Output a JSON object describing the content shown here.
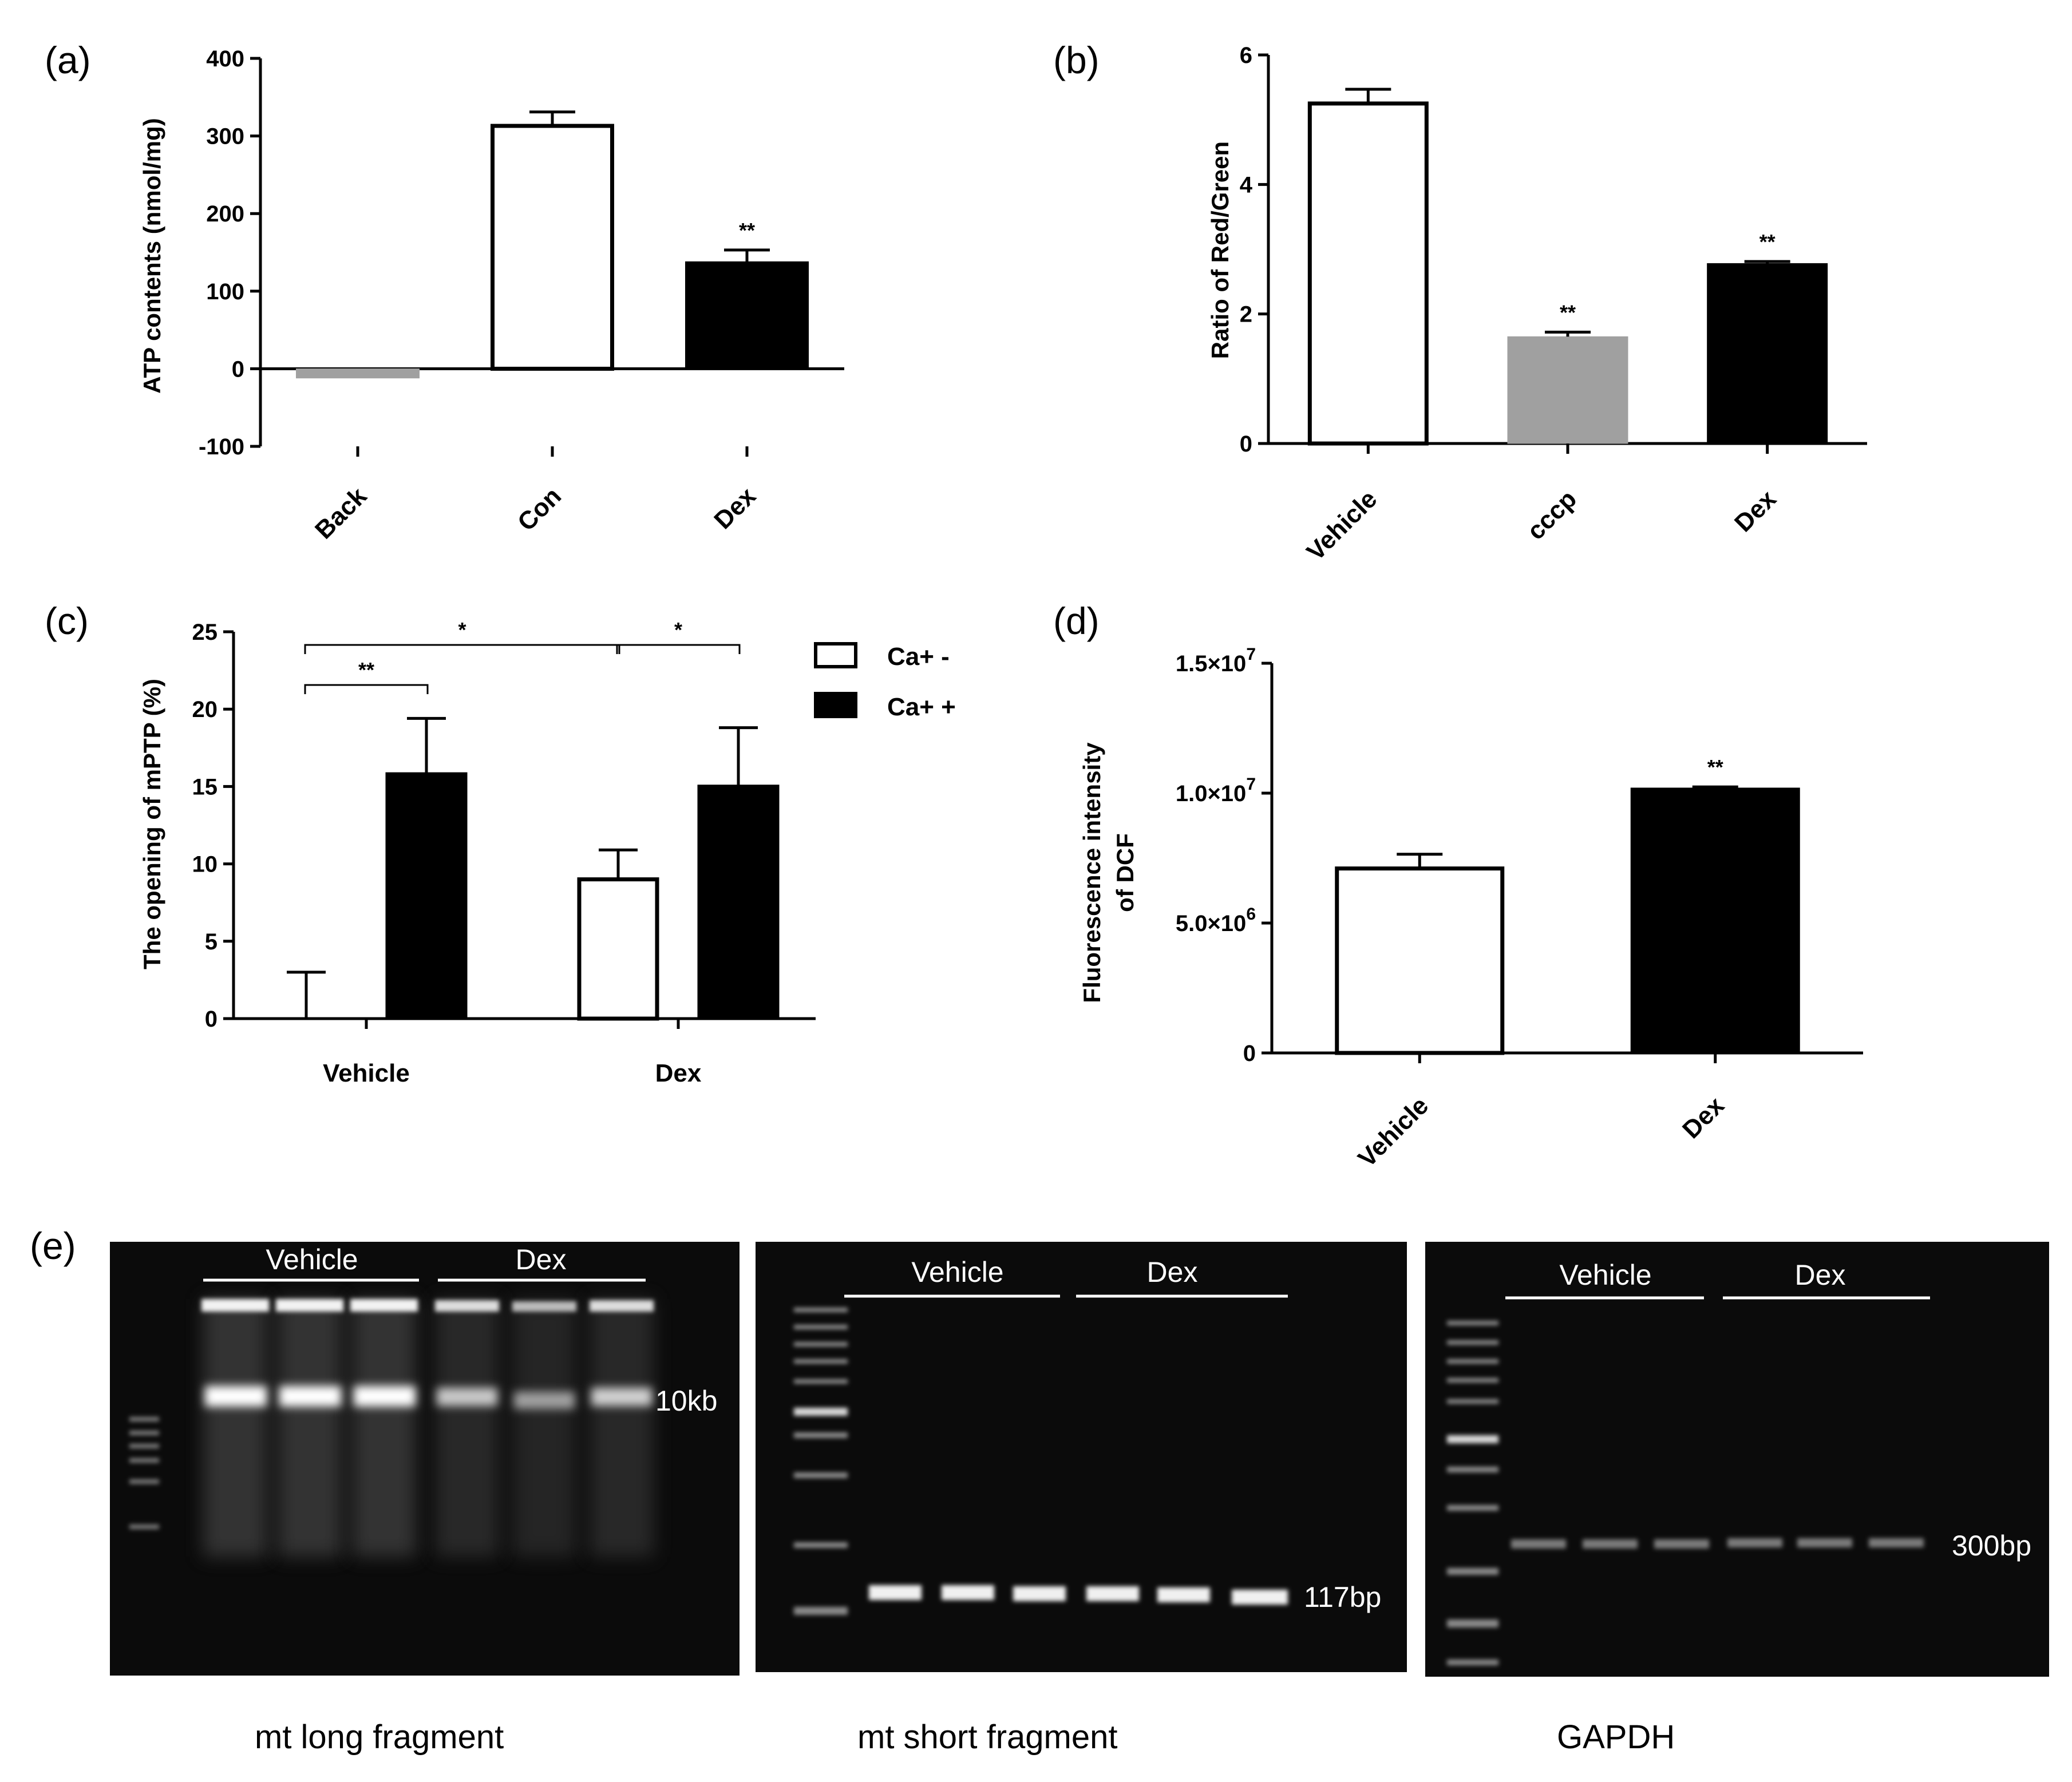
{
  "chart_data": [
    {
      "id": "a",
      "panel_label": "(a)",
      "type": "bar",
      "ylabel": "ATP contents (nmol/mg)",
      "ylim": [
        -100,
        400
      ],
      "yticks": [
        "-100",
        "0",
        "100",
        "200",
        "300",
        "400"
      ],
      "categories": [
        "Back",
        "Con",
        "Dex"
      ],
      "values": [
        -12,
        313,
        138
      ],
      "errors": [
        0,
        18,
        15
      ],
      "significance": [
        "",
        "",
        "**"
      ],
      "colors": [
        "#a0a0a0",
        "#ffffff",
        "#000000"
      ]
    },
    {
      "id": "b",
      "panel_label": "(b)",
      "type": "bar",
      "ylabel": "Ratio of Red/Green",
      "ylim": [
        0,
        6
      ],
      "yticks": [
        "0",
        "2",
        "4",
        "6"
      ],
      "categories": [
        "Vehicle",
        "cccp",
        "Dex"
      ],
      "values": [
        5.25,
        1.65,
        2.78
      ],
      "errors": [
        0.22,
        0.07,
        0.03
      ],
      "significance": [
        "",
        "**",
        "**"
      ],
      "colors": [
        "#ffffff",
        "#a0a0a0",
        "#000000"
      ]
    },
    {
      "id": "c",
      "panel_label": "(c)",
      "type": "bar",
      "ylabel": "The opening of mPTP (%)",
      "ylim": [
        0,
        25
      ],
      "yticks": [
        "0",
        "5",
        "10",
        "15",
        "20",
        "25"
      ],
      "categories": [
        "Vehicle",
        "Dex"
      ],
      "series": [
        {
          "name": "Ca+ -",
          "values": [
            0,
            9.0
          ],
          "errors": [
            3.0,
            1.9
          ],
          "color": "#ffffff"
        },
        {
          "name": "Ca+ +",
          "values": [
            15.9,
            15.1
          ],
          "errors": [
            3.5,
            3.7
          ],
          "color": "#000000"
        }
      ],
      "brackets": [
        {
          "label": "**",
          "from": "Vehicle / Ca+ -",
          "to": "Vehicle / Ca+ +"
        },
        {
          "label": "*",
          "from": "Vehicle / Ca+ -",
          "to": "Dex / Ca+ -"
        },
        {
          "label": "*",
          "from": "Dex / Ca+ -",
          "to": "Dex / Ca+ +"
        }
      ],
      "legend_position": "top-right"
    },
    {
      "id": "d",
      "panel_label": "(d)",
      "type": "bar",
      "ylabel_line1": "Fluorescence intensity",
      "ylabel_line2": "of DCF",
      "ylim": [
        0,
        15000000
      ],
      "ytick_values": [
        0,
        5000000,
        10000000,
        15000000
      ],
      "yticks": [
        {
          "mant": "0",
          "exp": ""
        },
        {
          "mant": "5.0×10",
          "exp": "6"
        },
        {
          "mant": "1.0×10",
          "exp": "7"
        },
        {
          "mant": "1.5×10",
          "exp": "7"
        }
      ],
      "categories": [
        "Vehicle",
        "Dex"
      ],
      "values": [
        7100000,
        10200000
      ],
      "errors": [
        550000,
        40000
      ],
      "significance": [
        "",
        "**"
      ],
      "colors": [
        "#ffffff",
        "#000000"
      ]
    }
  ],
  "gel": {
    "panel_label": "(e)",
    "panels": [
      {
        "group1": "Vehicle",
        "group2": "Dex",
        "size_label": "10kb",
        "caption": "mt long fragment"
      },
      {
        "group1": "Vehicle",
        "group2": "Dex",
        "size_label": "117bp",
        "caption": "mt short fragment"
      },
      {
        "group1": "Vehicle",
        "group2": "Dex",
        "size_label": "300bp",
        "caption": "GAPDH"
      }
    ]
  }
}
